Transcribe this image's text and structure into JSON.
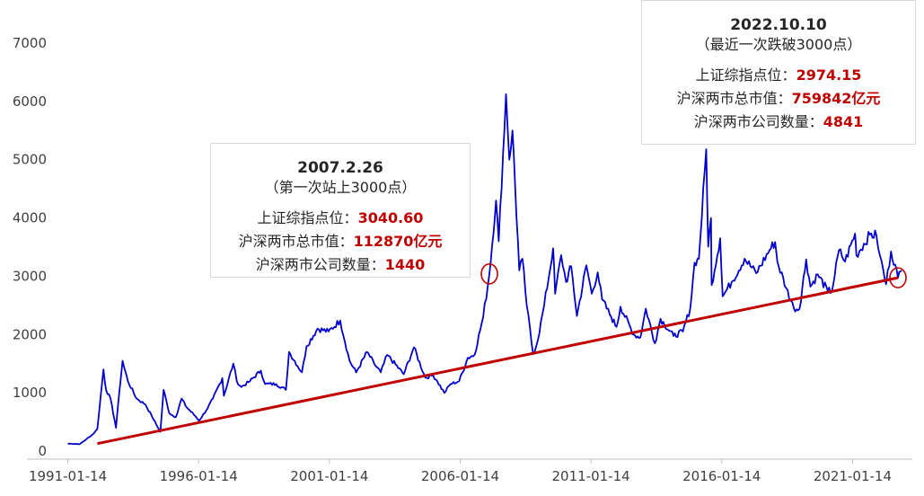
{
  "chart_data": {
    "type": "line",
    "title": "",
    "xlabel": "",
    "ylabel": "",
    "x_tick_labels": [
      "1991-01-14",
      "1996-01-14",
      "2001-01-14",
      "2006-01-14",
      "2011-01-14",
      "2016-01-14",
      "2021-01-14"
    ],
    "y_tick_labels": [
      "0",
      "1000",
      "2000",
      "3000",
      "4000",
      "5000",
      "6000",
      "7000"
    ],
    "ylim": [
      0,
      7000
    ],
    "xlim": [
      "1991-01-01",
      "2023-01-31"
    ],
    "grid": false,
    "legend": "none",
    "series": [
      {
        "color": "#0000cc",
        "points": [
          [
            "1991-01-14",
            128
          ],
          [
            "1991-07-01",
            120
          ],
          [
            "1992-01-01",
            290
          ],
          [
            "1992-03-01",
            380
          ],
          [
            "1992-05-25",
            1400
          ],
          [
            "1992-07-01",
            1050
          ],
          [
            "1992-09-01",
            900
          ],
          [
            "1992-11-17",
            400
          ],
          [
            "1993-01-01",
            1000
          ],
          [
            "1993-02-16",
            1550
          ],
          [
            "1993-05-01",
            1200
          ],
          [
            "1993-09-01",
            900
          ],
          [
            "1994-01-01",
            800
          ],
          [
            "1994-04-01",
            600
          ],
          [
            "1994-07-29",
            330
          ],
          [
            "1994-09-13",
            1050
          ],
          [
            "1994-12-01",
            650
          ],
          [
            "1995-03-01",
            580
          ],
          [
            "1995-05-22",
            900
          ],
          [
            "1995-08-01",
            750
          ],
          [
            "1995-12-01",
            600
          ],
          [
            "1996-01-19",
            520
          ],
          [
            "1996-05-01",
            700
          ],
          [
            "1996-08-01",
            900
          ],
          [
            "1996-12-11",
            1250
          ],
          [
            "1997-01-01",
            950
          ],
          [
            "1997-05-12",
            1500
          ],
          [
            "1997-07-01",
            1200
          ],
          [
            "1997-09-01",
            1100
          ],
          [
            "1998-01-01",
            1200
          ],
          [
            "1998-06-01",
            1380
          ],
          [
            "1998-08-01",
            1150
          ],
          [
            "1999-01-01",
            1150
          ],
          [
            "1999-05-17",
            1050
          ],
          [
            "1999-06-30",
            1700
          ],
          [
            "1999-12-27",
            1350
          ],
          [
            "2000-03-01",
            1800
          ],
          [
            "2000-08-01",
            2100
          ],
          [
            "2001-01-01",
            2050
          ],
          [
            "2001-06-14",
            2240
          ],
          [
            "2001-10-22",
            1550
          ],
          [
            "2002-01-22",
            1350
          ],
          [
            "2002-06-24",
            1700
          ],
          [
            "2002-10-01",
            1500
          ],
          [
            "2003-01-01",
            1350
          ],
          [
            "2003-04-01",
            1650
          ],
          [
            "2003-11-18",
            1320
          ],
          [
            "2004-04-07",
            1780
          ],
          [
            "2004-09-13",
            1260
          ],
          [
            "2005-01-01",
            1300
          ],
          [
            "2005-03-01",
            1200
          ],
          [
            "2005-06-06",
            998
          ],
          [
            "2005-09-01",
            1150
          ],
          [
            "2006-01-01",
            1200
          ],
          [
            "2006-05-01",
            1600
          ],
          [
            "2006-08-01",
            1650
          ],
          [
            "2006-12-01",
            2300
          ],
          [
            "2007-02-26",
            3040
          ],
          [
            "2007-05-29",
            4300
          ],
          [
            "2007-07-06",
            3600
          ],
          [
            "2007-10-16",
            6124
          ],
          [
            "2007-12-01",
            5000
          ],
          [
            "2008-01-14",
            5500
          ],
          [
            "2008-04-18",
            3100
          ],
          [
            "2008-06-01",
            3300
          ],
          [
            "2008-08-01",
            2500
          ],
          [
            "2008-10-28",
            1664
          ],
          [
            "2009-01-01",
            1900
          ],
          [
            "2009-04-01",
            2500
          ],
          [
            "2009-08-04",
            3478
          ],
          [
            "2009-09-01",
            2700
          ],
          [
            "2009-11-24",
            3361
          ],
          [
            "2010-02-01",
            2900
          ],
          [
            "2010-04-13",
            3170
          ],
          [
            "2010-07-02",
            2319
          ],
          [
            "2010-11-11",
            3186
          ],
          [
            "2011-01-25",
            2700
          ],
          [
            "2011-04-18",
            3067
          ],
          [
            "2011-06-20",
            2600
          ],
          [
            "2011-10-24",
            2300
          ],
          [
            "2012-01-06",
            2132
          ],
          [
            "2012-03-02",
            2478
          ],
          [
            "2012-09-01",
            2000
          ],
          [
            "2012-12-04",
            1949
          ],
          [
            "2013-02-18",
            2444
          ],
          [
            "2013-06-25",
            1849
          ],
          [
            "2013-09-12",
            2270
          ],
          [
            "2014-03-12",
            1974
          ],
          [
            "2014-07-21",
            2050
          ],
          [
            "2014-11-01",
            2450
          ],
          [
            "2014-12-31",
            3234
          ],
          [
            "2015-03-01",
            3300
          ],
          [
            "2015-06-12",
            5178
          ],
          [
            "2015-07-09",
            3507
          ],
          [
            "2015-08-17",
            4000
          ],
          [
            "2015-08-26",
            2850
          ],
          [
            "2015-12-23",
            3651
          ],
          [
            "2016-01-28",
            2655
          ],
          [
            "2016-06-01",
            2900
          ],
          [
            "2016-11-29",
            3301
          ],
          [
            "2017-05-10",
            3052
          ],
          [
            "2017-11-13",
            3450
          ],
          [
            "2018-01-29",
            3587
          ],
          [
            "2018-03-01",
            3250
          ],
          [
            "2018-07-01",
            2800
          ],
          [
            "2018-10-18",
            2449
          ],
          [
            "2019-01-04",
            2440
          ],
          [
            "2019-04-08",
            3288
          ],
          [
            "2019-06-06",
            2822
          ],
          [
            "2019-09-16",
            3031
          ],
          [
            "2020-02-03",
            2746
          ],
          [
            "2020-04-01",
            2750
          ],
          [
            "2020-07-09",
            3450
          ],
          [
            "2020-10-01",
            3250
          ],
          [
            "2021-02-18",
            3731
          ],
          [
            "2021-03-09",
            3360
          ],
          [
            "2021-09-13",
            3715
          ],
          [
            "2021-12-13",
            3700
          ],
          [
            "2022-02-01",
            3350
          ],
          [
            "2022-04-27",
            2863
          ],
          [
            "2022-07-05",
            3424
          ],
          [
            "2022-09-01",
            3200
          ],
          [
            "2022-10-10",
            2974
          ],
          [
            "2022-12-01",
            3100
          ]
        ]
      }
    ],
    "trend_line": {
      "color": "#c00000",
      "from": [
        "1992-03-01",
        128
      ],
      "to": [
        "2022-10-10",
        2974
      ]
    },
    "highlight_circles": [
      {
        "date": "2007-02-26",
        "value": 3040,
        "color": "#c00000"
      },
      {
        "date": "2022-10-10",
        "value": 2974,
        "color": "#c00000"
      }
    ]
  },
  "annotations": {
    "a2007": {
      "date": "2007.2.26",
      "subtitle": "（第一次站上3000点）",
      "row1_label": "上证综指点位：",
      "row1_value": "3040.60",
      "row2_label": "沪深两市总市值：",
      "row2_value": "112870亿元",
      "row3_label": "沪深两市公司数量：",
      "row3_value": "1440"
    },
    "a2022": {
      "date": "2022.10.10",
      "subtitle": "（最近一次跌破3000点）",
      "row1_label": "上证综指点位：",
      "row1_value": "2974.15",
      "row2_label": "沪深两市总市值：",
      "row2_value": "759842亿元",
      "row3_label": "沪深两市公司数量：",
      "row3_value": "4841"
    }
  }
}
